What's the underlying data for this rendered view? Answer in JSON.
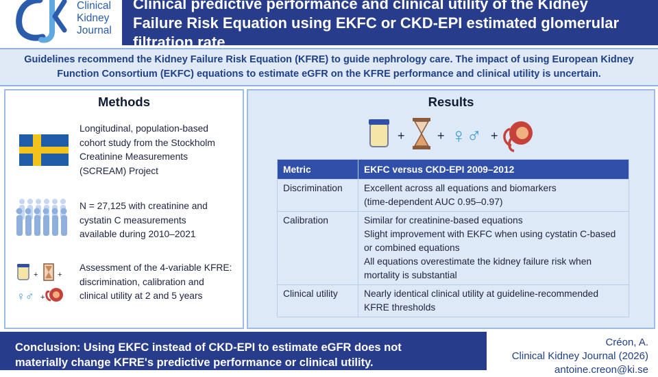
{
  "header": {
    "logo_lines": [
      "Clinical",
      "Kidney",
      "Journal"
    ],
    "title_lines": [
      "Clinical predictive performance and clinical utility of the Kidney",
      "Failure Risk Equation using EKFC or CKD-EPI estimated glomerular",
      "filtration rate"
    ]
  },
  "intro_lines": [
    "Guidelines recommend the Kidney Failure Risk Equation (KFRE) to guide nephrology care. The impact of using European Kidney",
    "Function Consortium (EKFC) equations to estimate eGFR on the KFRE performance and clinical utility is uncertain."
  ],
  "methods": {
    "heading": "Methods",
    "items": [
      {
        "icon": "sweden-flag-icon",
        "lines": [
          "Longitudinal, population-based",
          "cohort study from the Stockholm",
          "Creatinine Measurements",
          "(SCREAM) Project"
        ]
      },
      {
        "icon": "population-icon",
        "lines": [
          "N = 27,125 with creatinine and",
          "cystatin C measurements",
          "available during 2010–2021"
        ]
      },
      {
        "icon": "kfre-variables-icon",
        "lines": [
          "Assessment of the 4-variable KFRE:",
          "discrimination, calibration and",
          "clinical utility at 2 and 5 years"
        ]
      }
    ]
  },
  "results": {
    "heading": "Results",
    "icons": [
      "urine-sample-icon",
      "hourglass-icon",
      "sex-symbols-icon",
      "kidney-icon"
    ],
    "table": {
      "headers": [
        "Metric",
        "EKFC versus CKD-EPI 2009–2012"
      ],
      "rows": [
        {
          "metric": "Discrimination",
          "lines": [
            "Excellent across all equations and biomarkers",
            "(time-dependent AUC 0.95–0.97)"
          ]
        },
        {
          "metric": "Calibration",
          "lines": [
            "Similar for creatinine-based equations",
            "Slight improvement with EKFC when using cystatin C-based",
            "or combined equations",
            "All equations overestimate the kidney failure risk when",
            "mortality is substantial"
          ]
        },
        {
          "metric": "Clinical utility",
          "lines": [
            "Nearly identical clinical utility at guideline-recommended",
            "KFRE thresholds"
          ]
        }
      ]
    }
  },
  "footer": {
    "conclusion_lines": [
      "Conclusion: Using EKFC instead of CKD-EPI to estimate eGFR does not",
      "materially change KFRE's predictive performance or clinical utility."
    ],
    "citation_lines": [
      "Créon, A.",
      "Clinical Kidney Journal (2026)",
      "antoine.creon@ki.se"
    ]
  },
  "colors": {
    "header_blue": "#283c8c",
    "panel_border": "#9ebce3",
    "results_bg": "#dde9f6",
    "table_header": "#2f4fa8",
    "flag_blue": "#1f5ea6",
    "flag_yellow": "#f2c318"
  }
}
